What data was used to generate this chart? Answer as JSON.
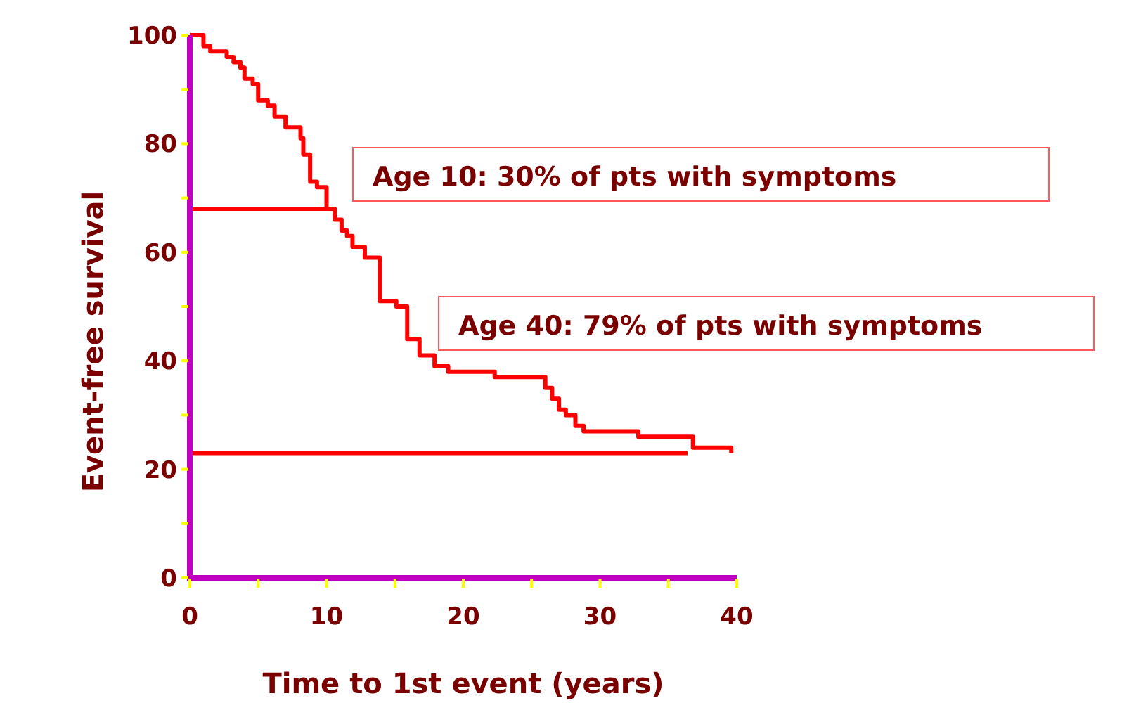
{
  "chart_data": {
    "type": "step",
    "xlabel": "Time to 1st event (years)",
    "ylabel": "Event-free survival",
    "xlim": [
      0,
      40
    ],
    "ylim": [
      0,
      100
    ],
    "xticks": [
      0,
      {
        "value": 5,
        "label": null
      },
      10,
      {
        "value": 15,
        "label": null
      },
      20,
      {
        "value": 25,
        "label": null
      },
      30,
      {
        "value": 35,
        "label": null
      },
      40
    ],
    "yticks": [
      0,
      {
        "value": 10,
        "label": null
      },
      20,
      {
        "value": 30,
        "label": null
      },
      40,
      {
        "value": 50,
        "label": null
      },
      60,
      {
        "value": 70,
        "label": null
      },
      80,
      {
        "value": 90,
        "label": null
      },
      100
    ],
    "grid": false,
    "marker": "none",
    "line_style": "solid",
    "annotations": [
      "Age 10: 30% of pts with symptoms",
      "Age 40: 79% of pts with symptoms"
    ],
    "series": [
      {
        "color": "#ff0000",
        "x": [
          0,
          1.0,
          1.5,
          2.7,
          3.2,
          3.7,
          4.0,
          4.6,
          5.0,
          5.7,
          6.2,
          7.0,
          8.1,
          8.3,
          8.8,
          9.3,
          10.0,
          10.6,
          11.1,
          11.5,
          11.9,
          12.8,
          13.9,
          15.1,
          15.9,
          16.8,
          17.9,
          18.9,
          22.3,
          26.0,
          26.5,
          27.0,
          27.5,
          28.2,
          28.8,
          32.8,
          36.8,
          39.6
        ],
        "values": [
          100,
          98,
          97,
          96,
          95,
          94,
          92,
          91,
          88,
          87,
          85,
          83,
          81,
          78,
          73,
          72,
          68,
          66,
          64,
          63,
          61,
          59,
          51,
          50,
          44,
          41,
          39,
          38,
          37,
          35,
          33,
          31,
          30,
          28,
          27,
          26,
          24,
          23
        ]
      },
      {
        "type": "line",
        "color": "#ff0000",
        "x": [
          0,
          10
        ],
        "values": [
          68,
          68
        ]
      },
      {
        "type": "line",
        "color": "#ff0000",
        "x": [
          0,
          36.4
        ],
        "values": [
          23,
          23
        ]
      }
    ]
  }
}
